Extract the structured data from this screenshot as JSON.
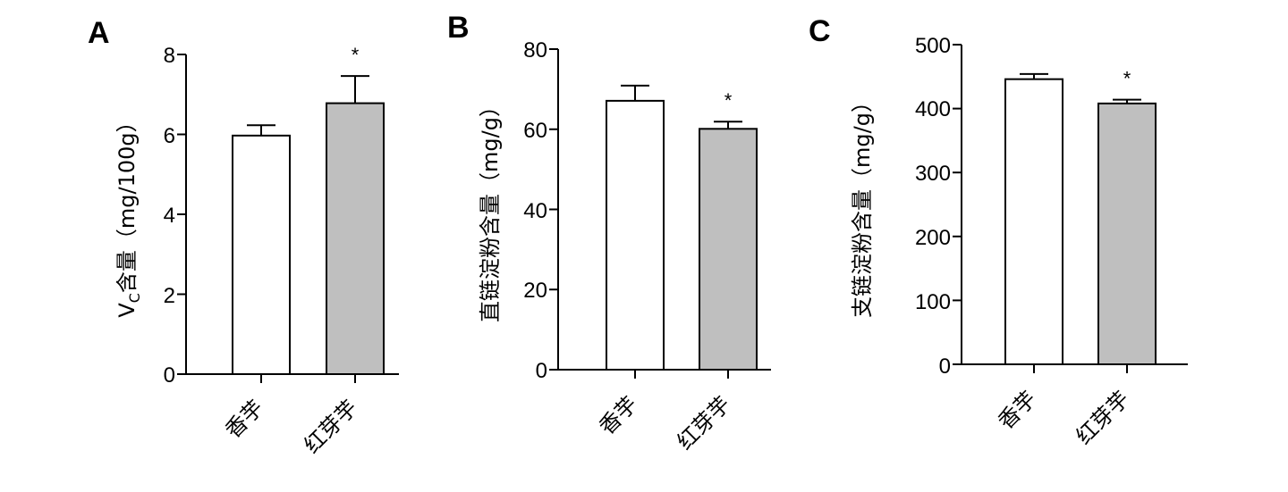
{
  "chart_data": [
    {
      "type": "bar",
      "panel_label": "A",
      "ylabel_main": "V",
      "ylabel_sub": "C",
      "ylabel_rest": "含量（mg/100g）",
      "ylim": [
        0,
        8
      ],
      "yticks": [
        "0",
        "2",
        "4",
        "6",
        "8"
      ],
      "categories": [
        "香芋",
        "红芽芋"
      ],
      "values": [
        5.97,
        6.78
      ],
      "errors": [
        0.26,
        0.68
      ],
      "bar_colors": [
        "#ffffff",
        "#bfbfbf"
      ],
      "significance": [
        "",
        "*"
      ]
    },
    {
      "type": "bar",
      "panel_label": "B",
      "ylabel_main": "直链淀粉含量（mg/g）",
      "ylabel_sub": "",
      "ylabel_rest": "",
      "ylim": [
        0,
        80
      ],
      "yticks": [
        "0",
        "20",
        "40",
        "60",
        "80"
      ],
      "categories": [
        "香芋",
        "红芽芋"
      ],
      "values": [
        67.1,
        60.1
      ],
      "errors": [
        3.8,
        1.8
      ],
      "bar_colors": [
        "#ffffff",
        "#bfbfbf"
      ],
      "significance": [
        "",
        "*"
      ]
    },
    {
      "type": "bar",
      "panel_label": "C",
      "ylabel_main": "支链淀粉含量（mg/g）",
      "ylabel_sub": "",
      "ylabel_rest": "",
      "ylim": [
        0,
        500
      ],
      "yticks": [
        "0",
        "100",
        "200",
        "300",
        "400",
        "500"
      ],
      "categories": [
        "香芋",
        "红芽芋"
      ],
      "values": [
        446,
        408
      ],
      "errors": [
        8,
        6
      ],
      "bar_colors": [
        "#ffffff",
        "#bfbfbf"
      ],
      "significance": [
        "",
        "*"
      ]
    }
  ]
}
